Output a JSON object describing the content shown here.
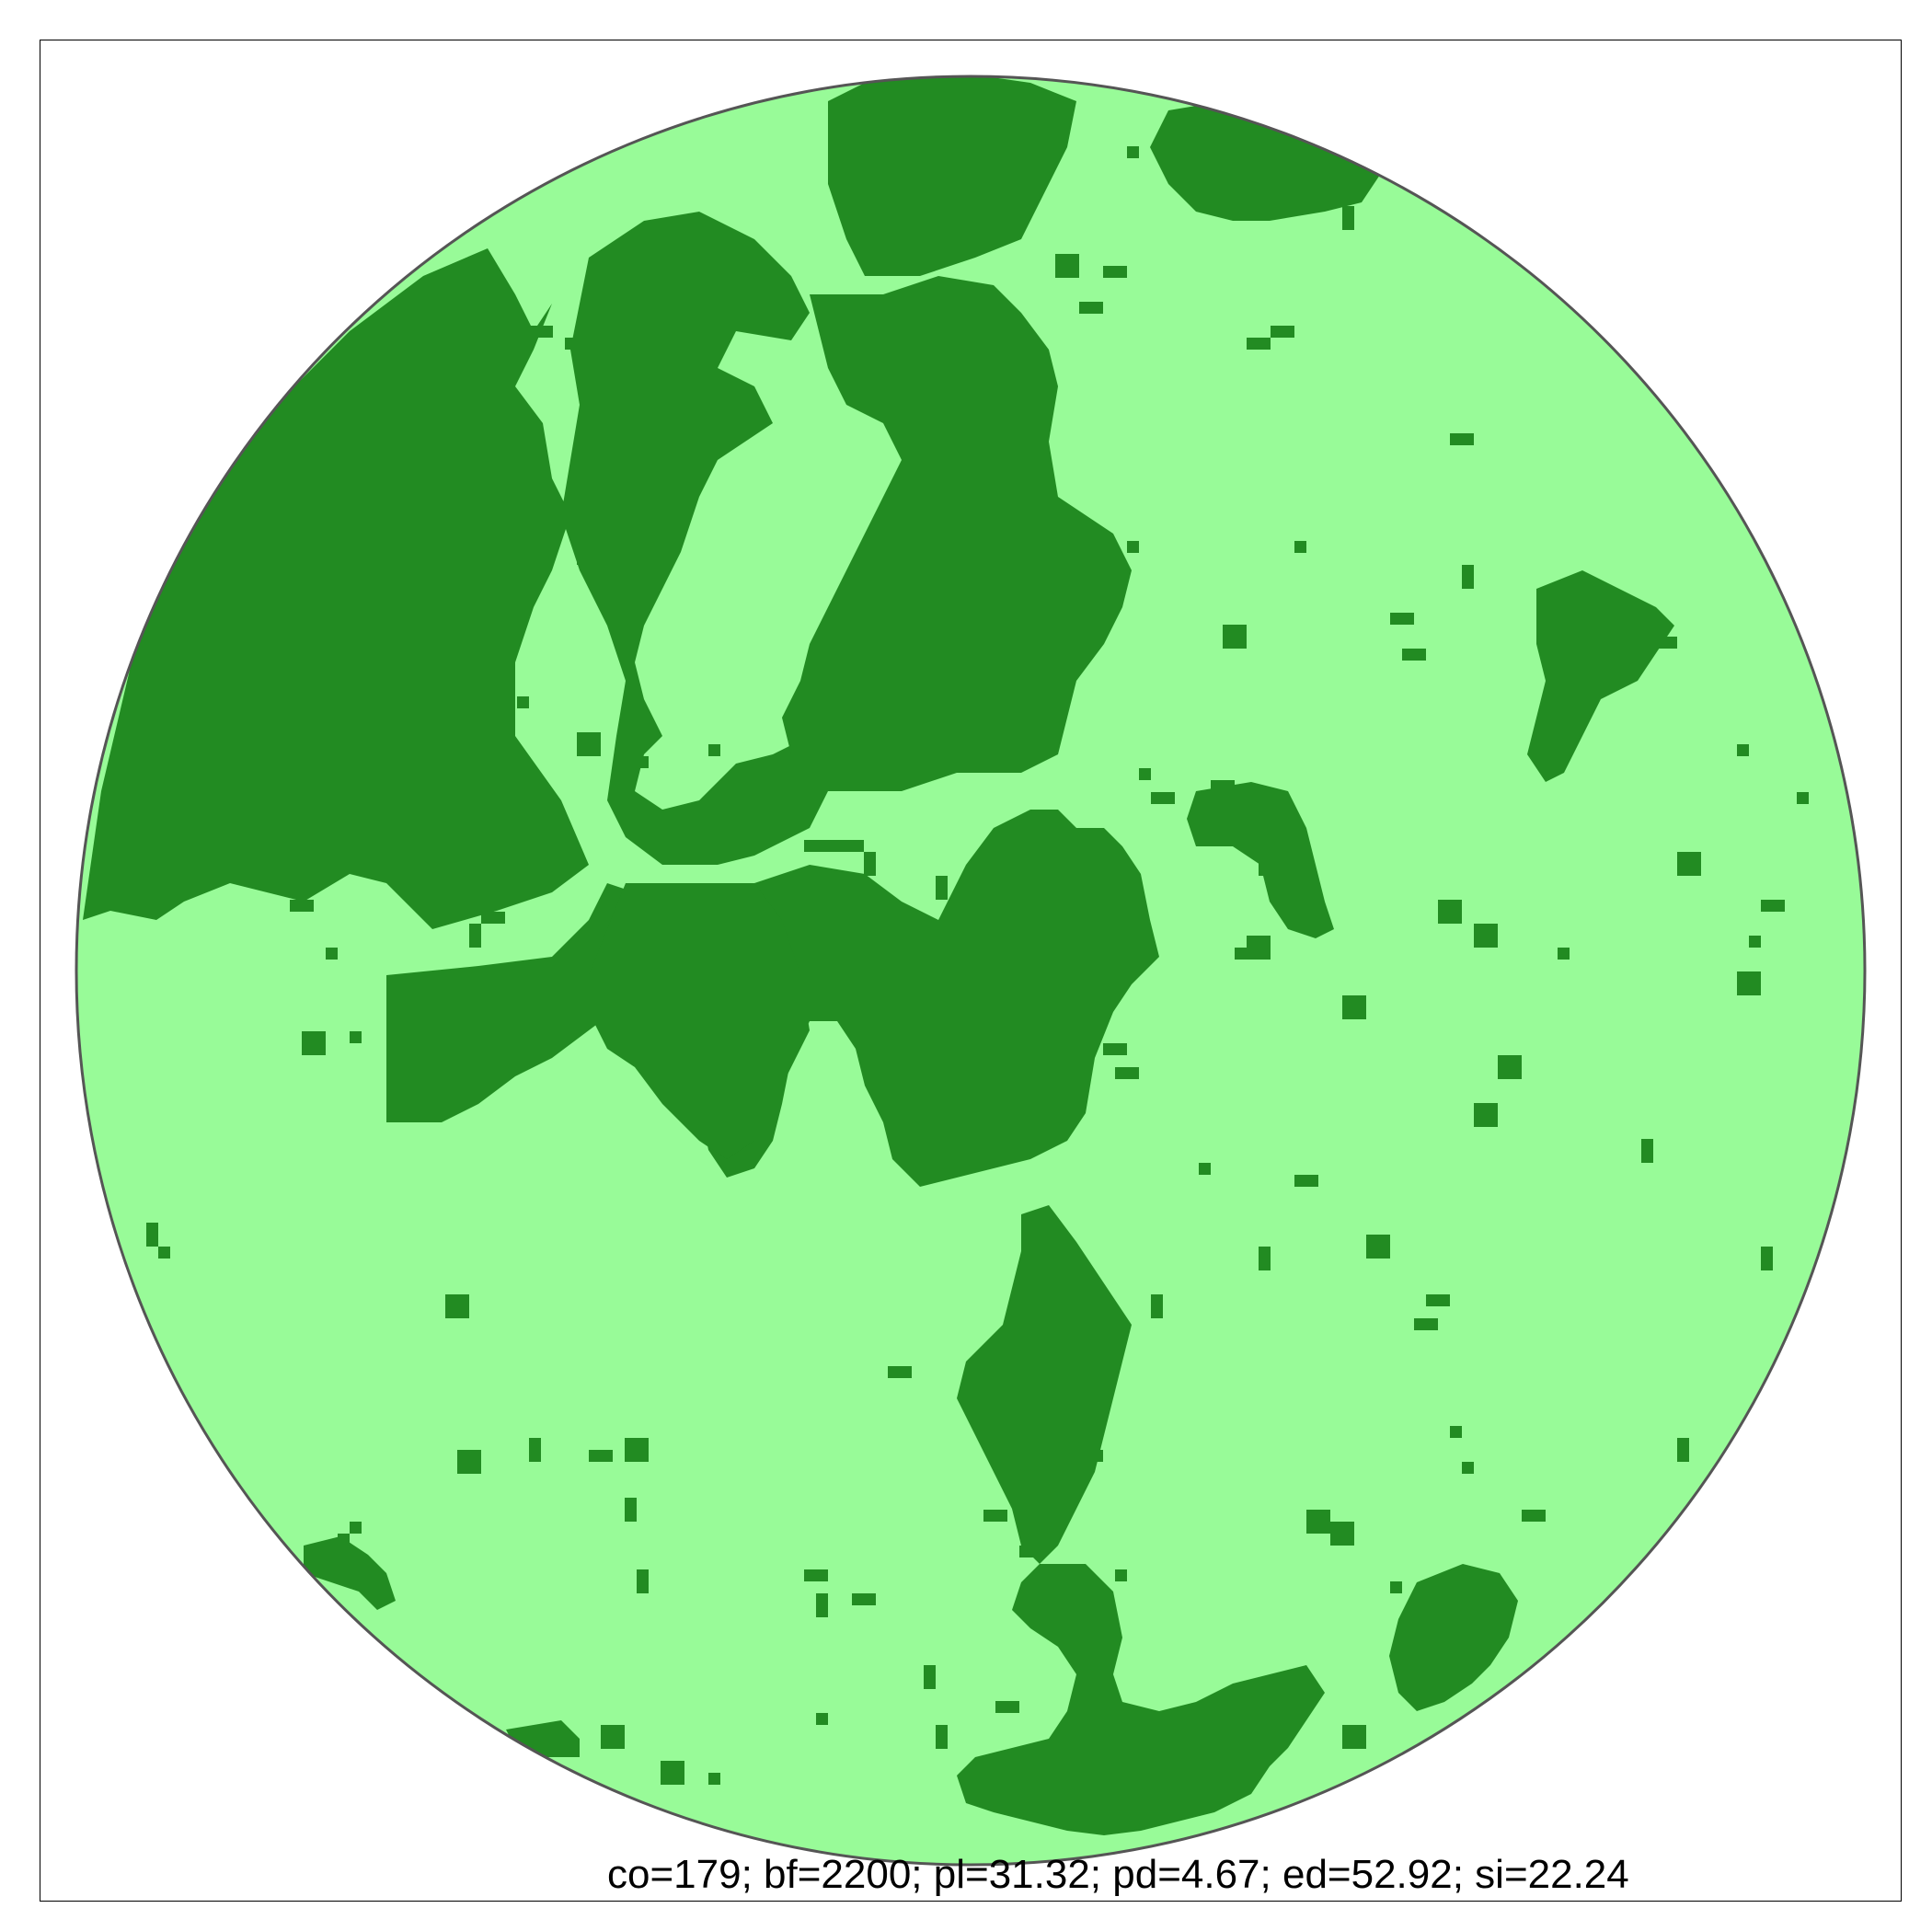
{
  "colors": {
    "background": "#98FB98",
    "forest": "#228B22",
    "circle_outline": "#555555",
    "frame": "#000000"
  },
  "stats_text": "co=179; bf=2200; pl=31.32; pd=4.67; ed=52.92; si=22.24"
}
